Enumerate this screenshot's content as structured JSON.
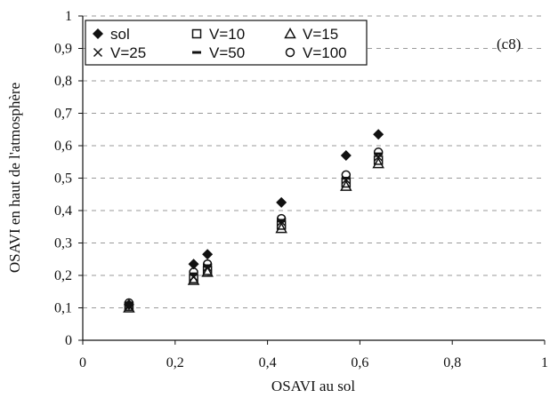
{
  "chart_data": {
    "type": "scatter",
    "title": "",
    "panel_label": "(c8)",
    "xlabel": "OSAVI au sol",
    "ylabel": "OSAVI en haut de l'atmosphère",
    "xlim": [
      0,
      1
    ],
    "ylim": [
      0,
      1
    ],
    "x_ticks": [
      "0",
      "0,2",
      "0,4",
      "0,6",
      "0,8",
      "1"
    ],
    "y_ticks": [
      "0",
      "0,1",
      "0,2",
      "0,3",
      "0,4",
      "0,5",
      "0,6",
      "0,7",
      "0,8",
      "0,9",
      "1"
    ],
    "grid": "horizontal dashed",
    "legend_position": "top-left",
    "series": [
      {
        "name": "sol",
        "marker": "diamond-filled",
        "x": [
          0.1,
          0.24,
          0.27,
          0.43,
          0.57,
          0.64
        ],
        "y": [
          0.11,
          0.235,
          0.265,
          0.425,
          0.57,
          0.635
        ]
      },
      {
        "name": "V=10",
        "marker": "square-open",
        "x": [
          0.1,
          0.24,
          0.27,
          0.43,
          0.57,
          0.64
        ],
        "y": [
          0.105,
          0.19,
          0.215,
          0.355,
          0.485,
          0.555
        ]
      },
      {
        "name": "V=15",
        "marker": "triangle-open",
        "x": [
          0.1,
          0.24,
          0.27,
          0.43,
          0.57,
          0.64
        ],
        "y": [
          0.1,
          0.185,
          0.21,
          0.345,
          0.475,
          0.545
        ]
      },
      {
        "name": "V=25",
        "marker": "x",
        "x": [
          0.1,
          0.24,
          0.27,
          0.43,
          0.57,
          0.64
        ],
        "y": [
          0.105,
          0.195,
          0.225,
          0.365,
          0.495,
          0.565
        ]
      },
      {
        "name": "V=50",
        "marker": "dash",
        "x": [
          0.1,
          0.24,
          0.27,
          0.43,
          0.57,
          0.64
        ],
        "y": [
          0.11,
          0.205,
          0.23,
          0.37,
          0.5,
          0.575
        ]
      },
      {
        "name": "V=100",
        "marker": "circle-open",
        "x": [
          0.1,
          0.24,
          0.27,
          0.43,
          0.57,
          0.64
        ],
        "y": [
          0.115,
          0.21,
          0.235,
          0.375,
          0.51,
          0.58
        ]
      }
    ]
  }
}
